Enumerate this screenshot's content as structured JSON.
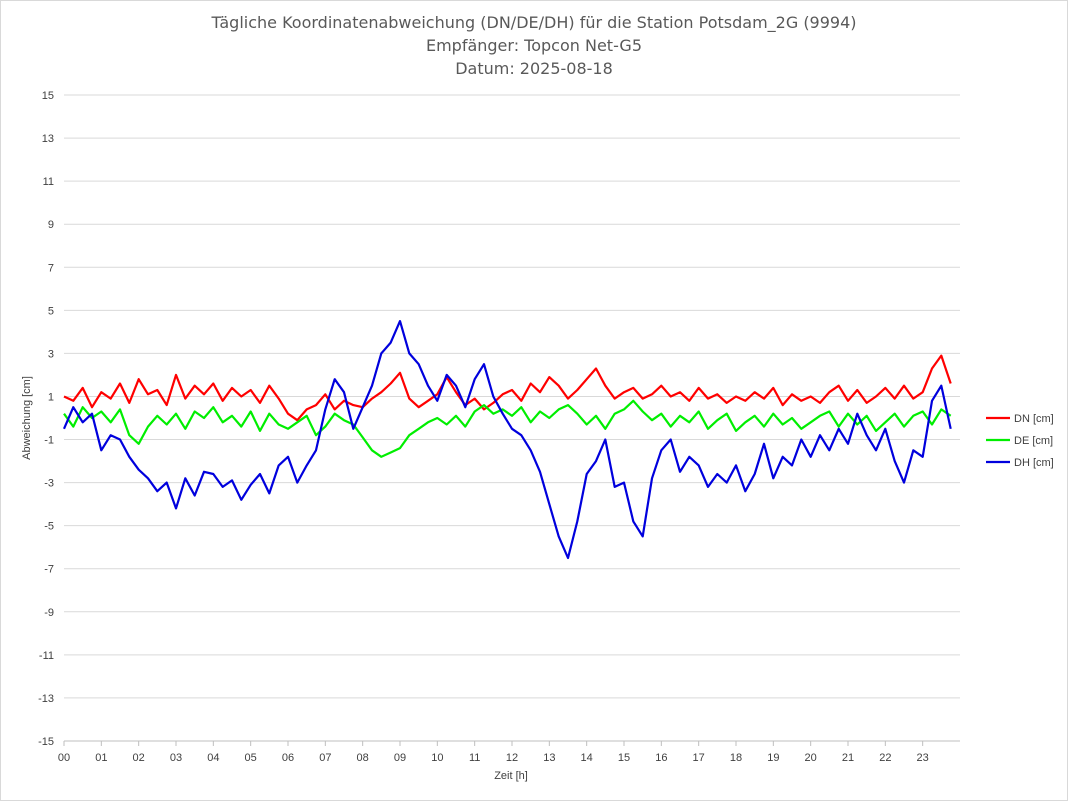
{
  "chart_data": {
    "type": "line",
    "title_lines": [
      "Tägliche Koordinatenabweichung (DN/DE/DH) für die Station Potsdam_2G (9994)",
      "Empfänger: Topcon Net-G5",
      "Datum: 2025-08-18"
    ],
    "xlabel": "Zeit [h]",
    "ylabel": "Abweichung [cm]",
    "xlim": [
      0,
      24
    ],
    "ylim": [
      -15,
      15
    ],
    "x_ticks": [
      "00",
      "01",
      "02",
      "03",
      "04",
      "05",
      "06",
      "07",
      "08",
      "09",
      "10",
      "11",
      "12",
      "13",
      "14",
      "15",
      "16",
      "17",
      "18",
      "19",
      "20",
      "21",
      "22",
      "23"
    ],
    "y_ticks": [
      15,
      13,
      11,
      9,
      7,
      5,
      3,
      1,
      -1,
      -3,
      -5,
      -7,
      -9,
      -11,
      -13,
      -15
    ],
    "grid": true,
    "legend_position": "right",
    "x": [
      0,
      0.25,
      0.5,
      0.75,
      1,
      1.25,
      1.5,
      1.75,
      2,
      2.25,
      2.5,
      2.75,
      3,
      3.25,
      3.5,
      3.75,
      4,
      4.25,
      4.5,
      4.75,
      5,
      5.25,
      5.5,
      5.75,
      6,
      6.25,
      6.5,
      6.75,
      7,
      7.25,
      7.5,
      7.75,
      8,
      8.25,
      8.5,
      8.75,
      9,
      9.25,
      9.5,
      9.75,
      10,
      10.25,
      10.5,
      10.75,
      11,
      11.25,
      11.5,
      11.75,
      12,
      12.25,
      12.5,
      12.75,
      13,
      13.25,
      13.5,
      13.75,
      14,
      14.25,
      14.5,
      14.75,
      15,
      15.25,
      15.5,
      15.75,
      16,
      16.25,
      16.5,
      16.75,
      17,
      17.25,
      17.5,
      17.75,
      18,
      18.25,
      18.5,
      18.75,
      19,
      19.25,
      19.5,
      19.75,
      20,
      20.25,
      20.5,
      20.75,
      21,
      21.25,
      21.5,
      21.75,
      22,
      22.25,
      22.5,
      22.75,
      23,
      23.25,
      23.5,
      23.75
    ],
    "series": [
      {
        "name": "DN [cm]",
        "color": "#ff0000",
        "values": [
          1.0,
          0.8,
          1.4,
          0.5,
          1.2,
          0.9,
          1.6,
          0.7,
          1.8,
          1.1,
          1.3,
          0.6,
          2.0,
          0.9,
          1.5,
          1.1,
          1.6,
          0.8,
          1.4,
          1.0,
          1.3,
          0.7,
          1.5,
          0.9,
          0.2,
          -0.1,
          0.4,
          0.6,
          1.1,
          0.4,
          0.8,
          0.6,
          0.5,
          0.9,
          1.2,
          1.6,
          2.1,
          0.9,
          0.5,
          0.8,
          1.1,
          1.9,
          1.2,
          0.6,
          0.9,
          0.4,
          0.7,
          1.1,
          1.3,
          0.8,
          1.6,
          1.2,
          1.9,
          1.5,
          0.9,
          1.3,
          1.8,
          2.3,
          1.5,
          0.9,
          1.2,
          1.4,
          0.9,
          1.1,
          1.5,
          1.0,
          1.2,
          0.8,
          1.4,
          0.9,
          1.1,
          0.7,
          1.0,
          0.8,
          1.2,
          0.9,
          1.4,
          0.6,
          1.1,
          0.8,
          1.0,
          0.7,
          1.2,
          1.5,
          0.8,
          1.3,
          0.7,
          1.0,
          1.4,
          0.9,
          1.5,
          0.9,
          1.2,
          2.3,
          2.9,
          1.6
        ]
      },
      {
        "name": "DE [cm]",
        "color": "#00ee00",
        "values": [
          0.2,
          -0.4,
          0.5,
          0.0,
          0.3,
          -0.2,
          0.4,
          -0.8,
          -1.2,
          -0.4,
          0.1,
          -0.3,
          0.2,
          -0.5,
          0.3,
          0.0,
          0.5,
          -0.2,
          0.1,
          -0.4,
          0.3,
          -0.6,
          0.2,
          -0.3,
          -0.5,
          -0.2,
          0.1,
          -0.8,
          -0.4,
          0.2,
          -0.1,
          -0.3,
          -0.9,
          -1.5,
          -1.8,
          -1.6,
          -1.4,
          -0.8,
          -0.5,
          -0.2,
          0.0,
          -0.3,
          0.1,
          -0.4,
          0.3,
          0.6,
          0.2,
          0.4,
          0.1,
          0.5,
          -0.2,
          0.3,
          0.0,
          0.4,
          0.6,
          0.2,
          -0.3,
          0.1,
          -0.5,
          0.2,
          0.4,
          0.8,
          0.3,
          -0.1,
          0.2,
          -0.4,
          0.1,
          -0.2,
          0.3,
          -0.5,
          -0.1,
          0.2,
          -0.6,
          -0.2,
          0.1,
          -0.4,
          0.2,
          -0.3,
          0.0,
          -0.5,
          -0.2,
          0.1,
          0.3,
          -0.4,
          0.2,
          -0.3,
          0.1,
          -0.6,
          -0.2,
          0.2,
          -0.4,
          0.1,
          0.3,
          -0.3,
          0.4,
          0.1
        ]
      },
      {
        "name": "DH [cm]",
        "color": "#0000dd",
        "values": [
          -0.5,
          0.5,
          -0.2,
          0.2,
          -1.5,
          -0.8,
          -1.0,
          -1.8,
          -2.4,
          -2.8,
          -3.4,
          -3.0,
          -4.2,
          -2.8,
          -3.6,
          -2.5,
          -2.6,
          -3.2,
          -2.9,
          -3.8,
          -3.1,
          -2.6,
          -3.5,
          -2.2,
          -1.8,
          -3.0,
          -2.2,
          -1.5,
          0.4,
          1.8,
          1.2,
          -0.5,
          0.5,
          1.5,
          3.0,
          3.5,
          4.5,
          3.0,
          2.5,
          1.5,
          0.8,
          2.0,
          1.5,
          0.5,
          1.8,
          2.5,
          1.0,
          0.2,
          -0.5,
          -0.8,
          -1.5,
          -2.5,
          -4.0,
          -5.5,
          -6.5,
          -4.8,
          -2.6,
          -2.0,
          -1.0,
          -3.2,
          -3.0,
          -4.8,
          -5.5,
          -2.8,
          -1.5,
          -1.0,
          -2.5,
          -1.8,
          -2.2,
          -3.2,
          -2.6,
          -3.0,
          -2.2,
          -3.4,
          -2.6,
          -1.2,
          -2.8,
          -1.8,
          -2.2,
          -1.0,
          -1.8,
          -0.8,
          -1.5,
          -0.5,
          -1.2,
          0.2,
          -0.8,
          -1.5,
          -0.5,
          -2.0,
          -3.0,
          -1.5,
          -1.8,
          0.8,
          1.5,
          -0.5
        ]
      }
    ]
  }
}
